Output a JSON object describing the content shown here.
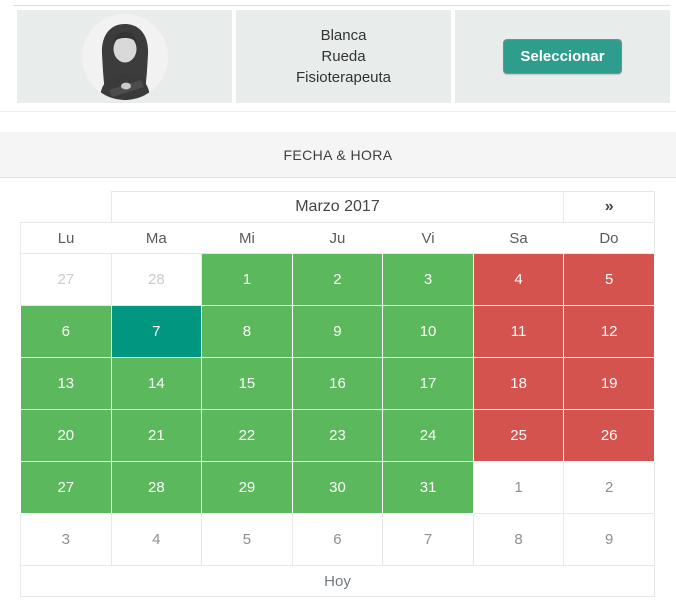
{
  "profile": {
    "avatar": "woman-portrait-grayscale-photo",
    "name_lines": [
      "Blanca",
      "Rueda",
      "Fisioterapeuta"
    ],
    "select_button_label": "Seleccionar"
  },
  "section_header": {
    "title": "FECHA & HORA"
  },
  "calendar": {
    "month_title": "Marzo 2017",
    "next_label": "»",
    "weekdays": [
      "Lu",
      "Ma",
      "Mi",
      "Ju",
      "Vi",
      "Sa",
      "Do"
    ],
    "footer_label": "Hoy",
    "weeks": [
      [
        {
          "day": "27",
          "state": "prev-month"
        },
        {
          "day": "28",
          "state": "prev-month"
        },
        {
          "day": "1",
          "state": "available"
        },
        {
          "day": "2",
          "state": "available"
        },
        {
          "day": "3",
          "state": "available"
        },
        {
          "day": "4",
          "state": "weekend"
        },
        {
          "day": "5",
          "state": "weekend"
        }
      ],
      [
        {
          "day": "6",
          "state": "available"
        },
        {
          "day": "7",
          "state": "selected"
        },
        {
          "day": "8",
          "state": "available"
        },
        {
          "day": "9",
          "state": "available"
        },
        {
          "day": "10",
          "state": "available"
        },
        {
          "day": "11",
          "state": "weekend"
        },
        {
          "day": "12",
          "state": "weekend"
        }
      ],
      [
        {
          "day": "13",
          "state": "available"
        },
        {
          "day": "14",
          "state": "available"
        },
        {
          "day": "15",
          "state": "available"
        },
        {
          "day": "16",
          "state": "available"
        },
        {
          "day": "17",
          "state": "available"
        },
        {
          "day": "18",
          "state": "weekend"
        },
        {
          "day": "19",
          "state": "weekend"
        }
      ],
      [
        {
          "day": "20",
          "state": "available"
        },
        {
          "day": "21",
          "state": "available"
        },
        {
          "day": "22",
          "state": "available"
        },
        {
          "day": "23",
          "state": "available"
        },
        {
          "day": "24",
          "state": "available"
        },
        {
          "day": "25",
          "state": "weekend"
        },
        {
          "day": "26",
          "state": "weekend"
        }
      ],
      [
        {
          "day": "27",
          "state": "available"
        },
        {
          "day": "28",
          "state": "available"
        },
        {
          "day": "29",
          "state": "available"
        },
        {
          "day": "30",
          "state": "available"
        },
        {
          "day": "31",
          "state": "available"
        },
        {
          "day": "1",
          "state": "next-month"
        },
        {
          "day": "2",
          "state": "next-month"
        }
      ],
      [
        {
          "day": "3",
          "state": "next-month"
        },
        {
          "day": "4",
          "state": "next-month"
        },
        {
          "day": "5",
          "state": "next-month"
        },
        {
          "day": "6",
          "state": "next-month"
        },
        {
          "day": "7",
          "state": "next-month"
        },
        {
          "day": "8",
          "state": "next-month"
        },
        {
          "day": "9",
          "state": "next-month"
        }
      ]
    ]
  },
  "colors": {
    "available": "#5cb85c",
    "weekend": "#d5534f",
    "selected": "#00967f",
    "button": "#2f9d8e",
    "profile_cell_bg": "#e8edeb"
  }
}
